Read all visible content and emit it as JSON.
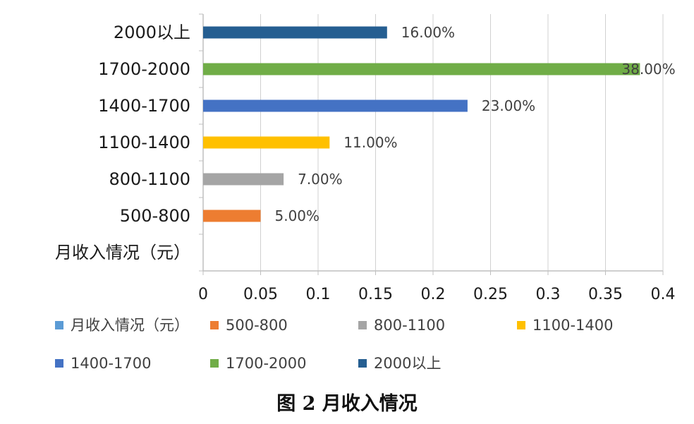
{
  "chart_data": {
    "type": "bar",
    "orientation": "horizontal",
    "categories": [
      "月收入情况（元）",
      "500-800",
      "800-1100",
      "1100-1400",
      "1400-1700",
      "1700-2000",
      "2000以上"
    ],
    "series": [
      {
        "name": "月收入情况（元）",
        "category": "月收入情况（元）",
        "value": null,
        "label": "",
        "color": "#5b9bd5"
      },
      {
        "name": "500-800",
        "category": "500-800",
        "value": 0.05,
        "label": "5.00%",
        "color": "#ed7d31"
      },
      {
        "name": "800-1100",
        "category": "800-1100",
        "value": 0.07,
        "label": "7.00%",
        "color": "#a5a5a5"
      },
      {
        "name": "1100-1400",
        "category": "1100-1400",
        "value": 0.11,
        "label": "11.00%",
        "color": "#ffc000"
      },
      {
        "name": "1400-1700",
        "category": "1400-1700",
        "value": 0.23,
        "label": "23.00%",
        "color": "#4472c4"
      },
      {
        "name": "1700-2000",
        "category": "1700-2000",
        "value": 0.38,
        "label": "38.00%",
        "color": "#70ad47"
      },
      {
        "name": "2000以上",
        "category": "2000以上",
        "value": 0.16,
        "label": "16.00%",
        "color": "#255e91"
      }
    ],
    "xlim": [
      0,
      0.4
    ],
    "xticks": [
      "0",
      "0.05",
      "0.1",
      "0.15",
      "0.2",
      "0.25",
      "0.3",
      "0.35",
      "0.4"
    ],
    "grid": "vertical",
    "legend": "bottom",
    "legend_order": [
      "月收入情况（元）",
      "500-800",
      "800-1100",
      "1100-1400",
      "1400-1700",
      "1700-2000",
      "2000以上"
    ]
  },
  "caption": "图 2  月收入情况"
}
